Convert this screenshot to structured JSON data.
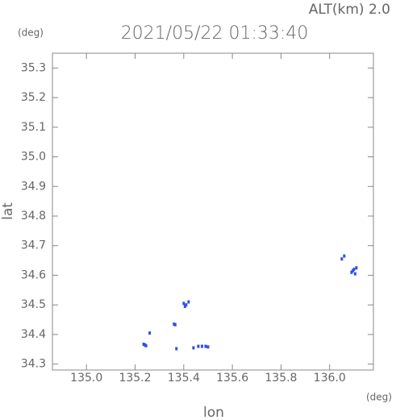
{
  "chart_data": {
    "type": "scatter",
    "title": "2021/05/22 01:33:40",
    "altitude_label": "ALT(km) 2.0",
    "x_label": "lon",
    "y_label": "lat",
    "x_unit": "(deg)",
    "y_unit": "(deg)",
    "color": "#3050e8",
    "xlim": [
      134.86,
      136.18
    ],
    "ylim": [
      34.28,
      35.35
    ],
    "xticks": [
      {
        "value": 135,
        "label": "135.0"
      },
      135.2,
      135.4,
      135.6,
      135.8,
      {
        "value": 136,
        "label": "136.0"
      }
    ],
    "yticks": [
      34.3,
      34.4,
      34.5,
      34.6,
      34.7,
      34.8,
      34.9,
      {
        "value": 35,
        "label": "35.0"
      },
      35.1,
      35.2,
      35.3
    ],
    "x": [
      135.235,
      135.24,
      135.245,
      135.26,
      135.36,
      135.365,
      135.37,
      135.4,
      135.405,
      135.41,
      135.42,
      135.44,
      135.46,
      135.475,
      135.49,
      135.5,
      136.05,
      136.06,
      136.09,
      136.095,
      136.1,
      136.105,
      136.11
    ],
    "values": [
      34.367,
      34.365,
      34.362,
      34.405,
      34.435,
      34.433,
      34.352,
      34.505,
      34.495,
      34.5,
      34.51,
      34.355,
      34.36,
      34.36,
      34.36,
      34.358,
      34.655,
      34.665,
      34.61,
      34.615,
      34.62,
      34.605,
      34.625
    ]
  }
}
